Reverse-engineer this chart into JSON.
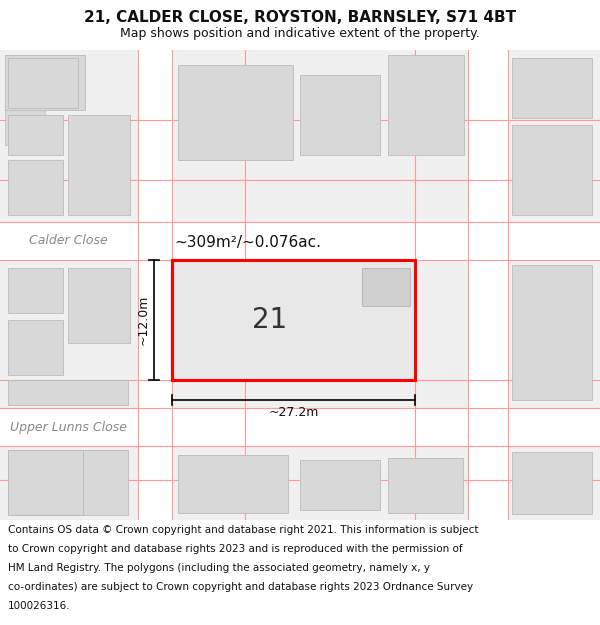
{
  "title": "21, CALDER CLOSE, ROYSTON, BARNSLEY, S71 4BT",
  "subtitle": "Map shows position and indicative extent of the property.",
  "footer": "Contains OS data © Crown copyright and database right 2021. This information is subject to Crown copyright and database rights 2023 and is reproduced with the permission of HM Land Registry. The polygons (including the associated geometry, namely x, y co-ordinates) are subject to Crown copyright and database rights 2023 Ordnance Survey 100026316.",
  "map_bg": "#f0f0f0",
  "road_color": "#ffffff",
  "building_fill": "#d8d8d8",
  "building_outline": "#bbbbbb",
  "highlight_fill": "#e8e8e8",
  "highlight_outline": "#ff0000",
  "pink_line_color": "#ff9999",
  "street_label_calder": "Calder Close",
  "street_label_upper": "Upper Lunns Close",
  "area_label": "~309m²/~0.076ac.",
  "number_label": "21",
  "width_label": "~27.2m",
  "height_label": "~12.0m",
  "title_fontsize": 11,
  "subtitle_fontsize": 9,
  "footer_fontsize": 7.5
}
